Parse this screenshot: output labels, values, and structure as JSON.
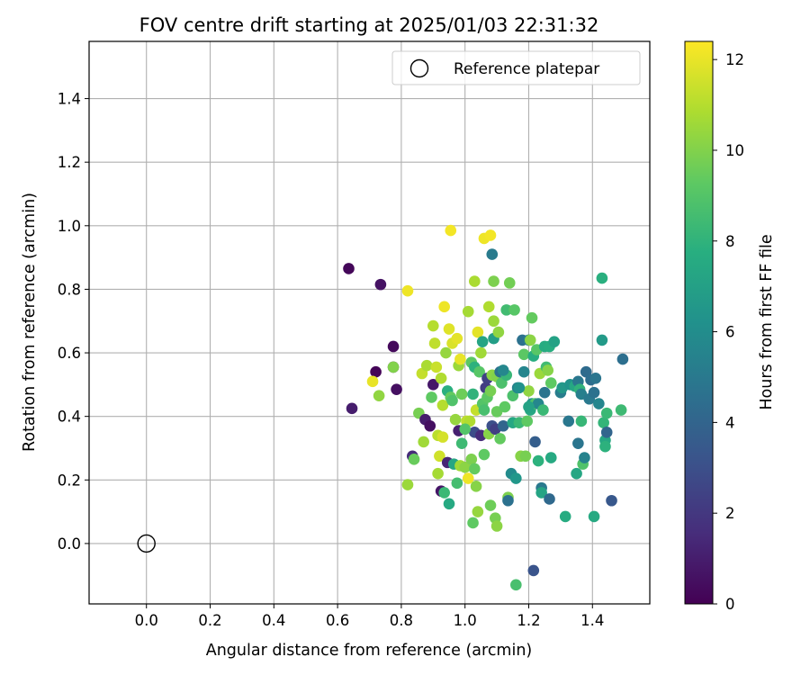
{
  "chart_data": {
    "type": "scatter",
    "title": "FOV centre drift starting at 2025/01/03 22:31:32",
    "xlabel": "Angular distance from reference (arcmin)",
    "ylabel": "Rotation from reference (arcmin)",
    "xlim": [
      -0.18,
      1.58
    ],
    "ylim": [
      -0.19,
      1.58
    ],
    "xticks": [
      "0.0",
      "0.2",
      "0.4",
      "0.6",
      "0.8",
      "1.0",
      "1.2",
      "1.4"
    ],
    "xtick_values": [
      0,
      0.2,
      0.4,
      0.6,
      0.8,
      1.0,
      1.2,
      1.4
    ],
    "yticks": [
      "0.0",
      "0.2",
      "0.4",
      "0.6",
      "0.8",
      "1.0",
      "1.2",
      "1.4"
    ],
    "ytick_values": [
      0,
      0.2,
      0.4,
      0.6,
      0.8,
      1.0,
      1.2,
      1.4
    ],
    "grid": true,
    "legend": {
      "position": "top-right",
      "entries": [
        "Reference platepar"
      ]
    },
    "reference_point": {
      "x": 0.0,
      "y": 0.0
    },
    "colorbar": {
      "label": "Hours from first FF file",
      "range": [
        0,
        12.4
      ],
      "ticks": [
        "0",
        "2",
        "4",
        "6",
        "8",
        "10",
        "12"
      ],
      "tick_values": [
        0,
        2,
        4,
        6,
        8,
        10,
        12
      ],
      "colormap": "viridis"
    },
    "points": [
      {
        "x": 0.635,
        "y": 0.865,
        "c": 0.2
      },
      {
        "x": 0.735,
        "y": 0.815,
        "c": 0.6
      },
      {
        "x": 0.775,
        "y": 0.62,
        "c": 0.3
      },
      {
        "x": 0.72,
        "y": 0.54,
        "c": 0.1
      },
      {
        "x": 0.775,
        "y": 0.555,
        "c": 0.4
      },
      {
        "x": 0.785,
        "y": 0.485,
        "c": 0.5
      },
      {
        "x": 0.645,
        "y": 0.425,
        "c": 1.0
      },
      {
        "x": 0.71,
        "y": 0.51,
        "c": 12.0
      },
      {
        "x": 0.73,
        "y": 0.465,
        "c": 10.3
      },
      {
        "x": 0.82,
        "y": 0.795,
        "c": 12.1
      },
      {
        "x": 0.775,
        "y": 0.555,
        "c": 10.0
      },
      {
        "x": 0.82,
        "y": 0.185,
        "c": 10.5
      },
      {
        "x": 0.835,
        "y": 0.275,
        "c": 1.5
      },
      {
        "x": 0.84,
        "y": 0.265,
        "c": 9.5
      },
      {
        "x": 0.855,
        "y": 0.41,
        "c": 9.8
      },
      {
        "x": 0.865,
        "y": 0.535,
        "c": 11.3
      },
      {
        "x": 0.87,
        "y": 0.32,
        "c": 10.6
      },
      {
        "x": 0.875,
        "y": 0.39,
        "c": 1.0
      },
      {
        "x": 0.88,
        "y": 0.56,
        "c": 10.8
      },
      {
        "x": 0.89,
        "y": 0.37,
        "c": 0.5
      },
      {
        "x": 0.895,
        "y": 0.46,
        "c": 9.3
      },
      {
        "x": 0.9,
        "y": 0.5,
        "c": 0.8
      },
      {
        "x": 0.9,
        "y": 0.685,
        "c": 11.0
      },
      {
        "x": 0.905,
        "y": 0.63,
        "c": 11.2
      },
      {
        "x": 0.91,
        "y": 0.555,
        "c": 11.4
      },
      {
        "x": 0.915,
        "y": 0.22,
        "c": 10.7
      },
      {
        "x": 0.915,
        "y": 0.34,
        "c": 11.1
      },
      {
        "x": 0.92,
        "y": 0.275,
        "c": 11.5
      },
      {
        "x": 0.925,
        "y": 0.165,
        "c": 0.7
      },
      {
        "x": 0.925,
        "y": 0.52,
        "c": 10.9
      },
      {
        "x": 0.93,
        "y": 0.435,
        "c": 11.0
      },
      {
        "x": 0.93,
        "y": 0.335,
        "c": 11.6
      },
      {
        "x": 0.935,
        "y": 0.16,
        "c": 8.3
      },
      {
        "x": 0.935,
        "y": 0.745,
        "c": 12.1
      },
      {
        "x": 0.94,
        "y": 0.6,
        "c": 10.4
      },
      {
        "x": 0.945,
        "y": 0.255,
        "c": 1.3
      },
      {
        "x": 0.945,
        "y": 0.48,
        "c": 7.8
      },
      {
        "x": 0.95,
        "y": 0.675,
        "c": 11.8
      },
      {
        "x": 0.95,
        "y": 0.125,
        "c": 7.5
      },
      {
        "x": 0.955,
        "y": 0.985,
        "c": 12.2
      },
      {
        "x": 0.955,
        "y": 0.46,
        "c": 9.4
      },
      {
        "x": 0.96,
        "y": 0.63,
        "c": 11.7
      },
      {
        "x": 0.965,
        "y": 0.25,
        "c": 7.3
      },
      {
        "x": 0.97,
        "y": 0.39,
        "c": 10.4
      },
      {
        "x": 0.975,
        "y": 0.645,
        "c": 11.9
      },
      {
        "x": 0.975,
        "y": 0.19,
        "c": 8.6
      },
      {
        "x": 0.98,
        "y": 0.355,
        "c": 1.1
      },
      {
        "x": 0.98,
        "y": 0.56,
        "c": 10.5
      },
      {
        "x": 0.985,
        "y": 0.58,
        "c": 12.0
      },
      {
        "x": 0.985,
        "y": 0.245,
        "c": 10.6
      },
      {
        "x": 0.99,
        "y": 0.47,
        "c": 9.6
      },
      {
        "x": 0.99,
        "y": 0.315,
        "c": 8.4
      },
      {
        "x": 1.0,
        "y": 0.24,
        "c": 10.2
      },
      {
        "x": 1.005,
        "y": 0.385,
        "c": 11.2
      },
      {
        "x": 1.01,
        "y": 0.205,
        "c": 12.1
      },
      {
        "x": 1.01,
        "y": 0.73,
        "c": 10.7
      },
      {
        "x": 1.015,
        "y": 0.385,
        "c": 10.9
      },
      {
        "x": 1.02,
        "y": 0.57,
        "c": 9.2
      },
      {
        "x": 1.02,
        "y": 0.265,
        "c": 9.9
      },
      {
        "x": 1.025,
        "y": 0.47,
        "c": 8.0
      },
      {
        "x": 1.025,
        "y": 0.065,
        "c": 9.3
      },
      {
        "x": 1.03,
        "y": 0.825,
        "c": 10.8
      },
      {
        "x": 1.03,
        "y": 0.35,
        "c": 2.9
      },
      {
        "x": 1.03,
        "y": 0.235,
        "c": 9.4
      },
      {
        "x": 1.03,
        "y": 0.555,
        "c": 7.9
      },
      {
        "x": 1.035,
        "y": 0.18,
        "c": 10.1
      },
      {
        "x": 1.035,
        "y": 0.42,
        "c": 11.3
      },
      {
        "x": 1.04,
        "y": 0.665,
        "c": 11.9
      },
      {
        "x": 1.04,
        "y": 0.1,
        "c": 10.4
      },
      {
        "x": 1.045,
        "y": 0.54,
        "c": 9.1
      },
      {
        "x": 1.05,
        "y": 0.34,
        "c": 1.5
      },
      {
        "x": 1.05,
        "y": 0.6,
        "c": 10.6
      },
      {
        "x": 1.055,
        "y": 0.44,
        "c": 9.0
      },
      {
        "x": 1.055,
        "y": 0.635,
        "c": 7.2
      },
      {
        "x": 1.06,
        "y": 0.96,
        "c": 12.1
      },
      {
        "x": 1.06,
        "y": 0.28,
        "c": 9.3
      },
      {
        "x": 1.065,
        "y": 0.49,
        "c": 2.2
      },
      {
        "x": 1.07,
        "y": 0.52,
        "c": 2.4
      },
      {
        "x": 1.07,
        "y": 0.46,
        "c": 9.2
      },
      {
        "x": 1.075,
        "y": 0.345,
        "c": 10.1
      },
      {
        "x": 1.075,
        "y": 0.745,
        "c": 10.9
      },
      {
        "x": 1.08,
        "y": 0.97,
        "c": 12.2
      },
      {
        "x": 1.08,
        "y": 0.12,
        "c": 9.6
      },
      {
        "x": 1.08,
        "y": 0.48,
        "c": 9.8
      },
      {
        "x": 1.085,
        "y": 0.91,
        "c": 5.1
      },
      {
        "x": 1.085,
        "y": 0.37,
        "c": 3.0
      },
      {
        "x": 1.085,
        "y": 0.53,
        "c": 10.2
      },
      {
        "x": 1.09,
        "y": 0.645,
        "c": 6.9
      },
      {
        "x": 1.09,
        "y": 0.7,
        "c": 10.5
      },
      {
        "x": 1.09,
        "y": 0.825,
        "c": 9.9
      },
      {
        "x": 1.095,
        "y": 0.08,
        "c": 9.8
      },
      {
        "x": 1.095,
        "y": 0.36,
        "c": 2.3
      },
      {
        "x": 1.1,
        "y": 0.055,
        "c": 10.2
      },
      {
        "x": 1.1,
        "y": 0.525,
        "c": 10.0
      },
      {
        "x": 1.1,
        "y": 0.415,
        "c": 9.5
      },
      {
        "x": 1.105,
        "y": 0.665,
        "c": 10.3
      },
      {
        "x": 1.11,
        "y": 0.54,
        "c": 4.6
      },
      {
        "x": 1.11,
        "y": 0.33,
        "c": 9.4
      },
      {
        "x": 1.115,
        "y": 0.505,
        "c": 8.8
      },
      {
        "x": 1.12,
        "y": 0.37,
        "c": 4.0
      },
      {
        "x": 1.125,
        "y": 0.43,
        "c": 9.3
      },
      {
        "x": 1.13,
        "y": 0.53,
        "c": 8.2
      },
      {
        "x": 1.13,
        "y": 0.735,
        "c": 8.5
      },
      {
        "x": 1.135,
        "y": 0.145,
        "c": 9.9
      },
      {
        "x": 1.135,
        "y": 0.135,
        "c": 4.6
      },
      {
        "x": 1.14,
        "y": 0.82,
        "c": 9.7
      },
      {
        "x": 1.145,
        "y": 0.22,
        "c": 5.9
      },
      {
        "x": 1.15,
        "y": 0.38,
        "c": 7.4
      },
      {
        "x": 1.15,
        "y": 0.465,
        "c": 8.8
      },
      {
        "x": 1.155,
        "y": 0.735,
        "c": 9.1
      },
      {
        "x": 1.16,
        "y": -0.13,
        "c": 8.7
      },
      {
        "x": 1.16,
        "y": 0.205,
        "c": 6.5
      },
      {
        "x": 1.165,
        "y": 0.49,
        "c": 5.4
      },
      {
        "x": 1.17,
        "y": 0.38,
        "c": 8.3
      },
      {
        "x": 1.175,
        "y": 0.275,
        "c": 10.1
      },
      {
        "x": 1.18,
        "y": 0.64,
        "c": 4.6
      },
      {
        "x": 1.185,
        "y": 0.595,
        "c": 9.2
      },
      {
        "x": 1.185,
        "y": 0.54,
        "c": 5.6
      },
      {
        "x": 1.19,
        "y": 0.275,
        "c": 9.8
      },
      {
        "x": 1.195,
        "y": 0.385,
        "c": 9.3
      },
      {
        "x": 1.2,
        "y": 0.64,
        "c": 5.1
      },
      {
        "x": 1.2,
        "y": 0.48,
        "c": 10.3
      },
      {
        "x": 1.205,
        "y": 0.42,
        "c": 7.4
      },
      {
        "x": 1.205,
        "y": 0.64,
        "c": 10.2
      },
      {
        "x": 1.21,
        "y": 0.71,
        "c": 9.4
      },
      {
        "x": 1.21,
        "y": 0.44,
        "c": 6.6
      },
      {
        "x": 1.215,
        "y": 0.59,
        "c": 7.7
      },
      {
        "x": 1.215,
        "y": -0.085,
        "c": 3.2
      },
      {
        "x": 1.22,
        "y": 0.32,
        "c": 3.7
      },
      {
        "x": 1.22,
        "y": 0.44,
        "c": 8.9
      },
      {
        "x": 1.225,
        "y": 0.61,
        "c": 9.1
      },
      {
        "x": 1.23,
        "y": 0.26,
        "c": 7.9
      },
      {
        "x": 1.23,
        "y": 0.44,
        "c": 5.7
      },
      {
        "x": 1.235,
        "y": 0.535,
        "c": 10.5
      },
      {
        "x": 1.24,
        "y": 0.175,
        "c": 5.0
      },
      {
        "x": 1.24,
        "y": 0.16,
        "c": 7.2
      },
      {
        "x": 1.245,
        "y": 0.42,
        "c": 8.3
      },
      {
        "x": 1.25,
        "y": 0.475,
        "c": 4.8
      },
      {
        "x": 1.25,
        "y": 0.62,
        "c": 7.6
      },
      {
        "x": 1.255,
        "y": 0.555,
        "c": 8.5
      },
      {
        "x": 1.26,
        "y": 0.545,
        "c": 10.1
      },
      {
        "x": 1.265,
        "y": 0.62,
        "c": 7.7
      },
      {
        "x": 1.265,
        "y": 0.14,
        "c": 4.2
      },
      {
        "x": 1.27,
        "y": 0.27,
        "c": 7.5
      },
      {
        "x": 1.27,
        "y": 0.505,
        "c": 9.3
      },
      {
        "x": 1.28,
        "y": 0.635,
        "c": 7.1
      },
      {
        "x": 1.3,
        "y": 0.475,
        "c": 5.2
      },
      {
        "x": 1.305,
        "y": 0.49,
        "c": 6.6
      },
      {
        "x": 1.315,
        "y": 0.085,
        "c": 7.6
      },
      {
        "x": 1.325,
        "y": 0.385,
        "c": 4.9
      },
      {
        "x": 1.33,
        "y": 0.5,
        "c": 6.3
      },
      {
        "x": 1.345,
        "y": 0.495,
        "c": 7.4
      },
      {
        "x": 1.35,
        "y": 0.22,
        "c": 7.3
      },
      {
        "x": 1.355,
        "y": 0.51,
        "c": 4.9
      },
      {
        "x": 1.355,
        "y": 0.315,
        "c": 4.8
      },
      {
        "x": 1.36,
        "y": 0.485,
        "c": 8.0
      },
      {
        "x": 1.365,
        "y": 0.47,
        "c": 5.3
      },
      {
        "x": 1.365,
        "y": 0.385,
        "c": 8.2
      },
      {
        "x": 1.37,
        "y": 0.25,
        "c": 8.9
      },
      {
        "x": 1.375,
        "y": 0.27,
        "c": 5.5
      },
      {
        "x": 1.38,
        "y": 0.54,
        "c": 4.3
      },
      {
        "x": 1.39,
        "y": 0.455,
        "c": 5.0
      },
      {
        "x": 1.395,
        "y": 0.515,
        "c": 4.4
      },
      {
        "x": 1.405,
        "y": 0.085,
        "c": 7.5
      },
      {
        "x": 1.405,
        "y": 0.475,
        "c": 4.6
      },
      {
        "x": 1.41,
        "y": 0.52,
        "c": 4.8
      },
      {
        "x": 1.42,
        "y": 0.44,
        "c": 5.6
      },
      {
        "x": 1.43,
        "y": 0.64,
        "c": 6.7
      },
      {
        "x": 1.43,
        "y": 0.835,
        "c": 7.8
      },
      {
        "x": 1.435,
        "y": 0.38,
        "c": 8.1
      },
      {
        "x": 1.44,
        "y": 0.325,
        "c": 7.4
      },
      {
        "x": 1.44,
        "y": 0.305,
        "c": 7.9
      },
      {
        "x": 1.445,
        "y": 0.35,
        "c": 4.0
      },
      {
        "x": 1.445,
        "y": 0.41,
        "c": 8.3
      },
      {
        "x": 1.46,
        "y": 0.135,
        "c": 3.4
      },
      {
        "x": 1.49,
        "y": 0.42,
        "c": 8.4
      },
      {
        "x": 1.495,
        "y": 0.58,
        "c": 4.5
      },
      {
        "x": 1.2,
        "y": 0.43,
        "c": 7.1
      },
      {
        "x": 1.17,
        "y": 0.49,
        "c": 6.2
      },
      {
        "x": 1.12,
        "y": 0.545,
        "c": 5.7
      },
      {
        "x": 1.0,
        "y": 0.36,
        "c": 9.0
      },
      {
        "x": 1.06,
        "y": 0.42,
        "c": 8.7
      },
      {
        "x": 0.96,
        "y": 0.45,
        "c": 8.9
      }
    ]
  }
}
